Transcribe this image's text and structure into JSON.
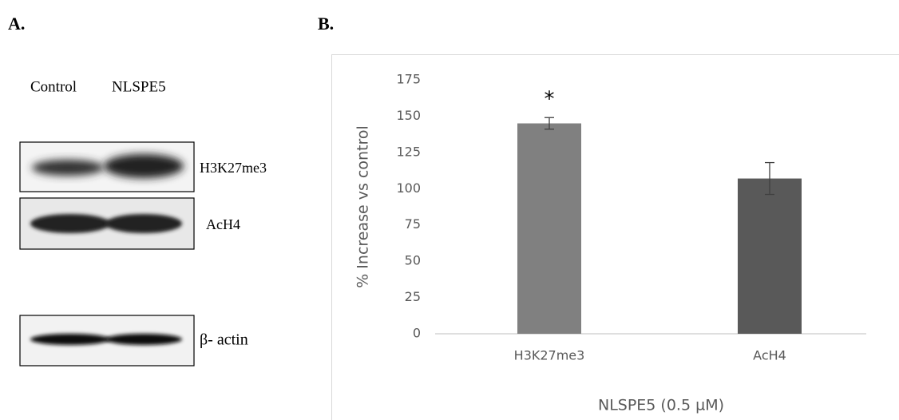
{
  "panel_a": {
    "label": "A.",
    "columns": [
      "Control",
      "NLSPE5"
    ],
    "bands": [
      "H3K27me3",
      "AcH4",
      "β- actin"
    ]
  },
  "chart_data": {
    "type": "bar",
    "panel_label": "B.",
    "categories": [
      "H3K27me3",
      "AcH4"
    ],
    "values": [
      145,
      107
    ],
    "errors": [
      4,
      11
    ],
    "colors": [
      "#808080",
      "#595959"
    ],
    "ylim": [
      0,
      175
    ],
    "yticks": [
      0,
      25,
      50,
      75,
      100,
      125,
      150,
      175
    ],
    "grid": false,
    "y_label": "% Increase vs control",
    "x_label": "NLSPE5 (0.5 µM)",
    "annotation": "*"
  }
}
